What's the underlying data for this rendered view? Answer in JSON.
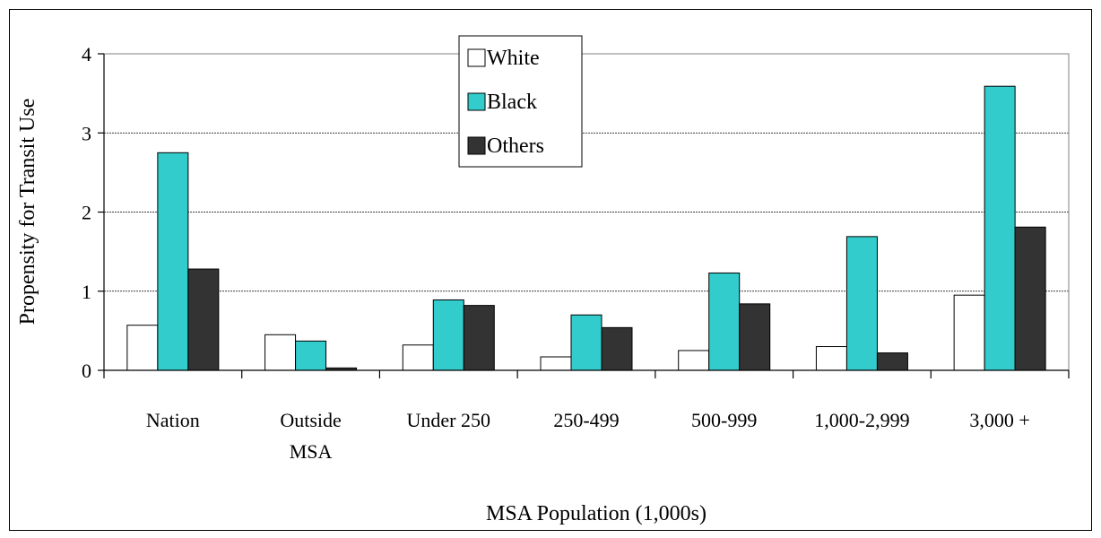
{
  "chart_data": {
    "type": "bar",
    "title": "",
    "xlabel": "MSA Population (1,000s)",
    "ylabel": "Propensity for Transit Use",
    "ylim": [
      0,
      4
    ],
    "yticks": [
      "0",
      "1",
      "2",
      "3",
      "4"
    ],
    "grid": true,
    "legend_position": "top-center",
    "categories": [
      [
        "Nation"
      ],
      [
        "Outside",
        "MSA"
      ],
      [
        "Under 250"
      ],
      [
        "250-499"
      ],
      [
        "500-999"
      ],
      [
        "1,000-2,999"
      ],
      [
        "3,000 +"
      ]
    ],
    "series": [
      {
        "name": "White",
        "color": "#ffffff",
        "values": [
          0.57,
          0.45,
          0.32,
          0.17,
          0.25,
          0.3,
          0.95
        ]
      },
      {
        "name": "Black",
        "color": "#33cccc",
        "values": [
          2.75,
          0.37,
          0.89,
          0.7,
          1.23,
          1.69,
          3.59
        ]
      },
      {
        "name": "Others",
        "color": "#333333",
        "values": [
          1.28,
          0.03,
          0.82,
          0.54,
          0.84,
          0.22,
          1.81
        ]
      }
    ]
  }
}
